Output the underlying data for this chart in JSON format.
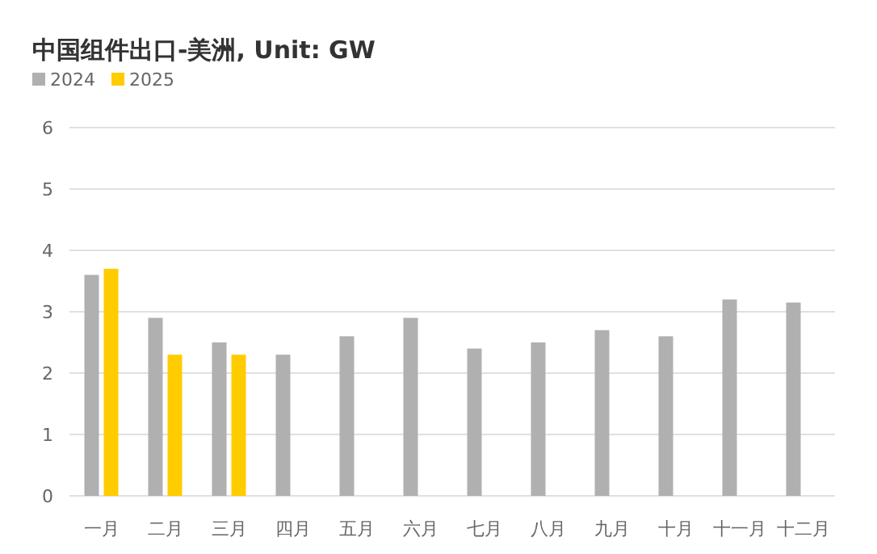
{
  "chart_data": {
    "type": "bar",
    "title": "中国组件出口-美洲, Unit: GW",
    "categories": [
      "一月",
      "二月",
      "三月",
      "四月",
      "五月",
      "六月",
      "七月",
      "八月",
      "九月",
      "十月",
      "十一月",
      "十二月"
    ],
    "series": [
      {
        "name": "2024",
        "color": "#b0b0b0",
        "values": [
          3.6,
          2.9,
          2.5,
          2.3,
          2.6,
          2.9,
          2.4,
          2.5,
          2.7,
          2.6,
          3.2,
          3.15
        ]
      },
      {
        "name": "2025",
        "color": "#ffcc00",
        "values": [
          3.7,
          2.3,
          2.3,
          null,
          null,
          null,
          null,
          null,
          null,
          null,
          null,
          null
        ]
      }
    ],
    "ylim": [
      0,
      6
    ],
    "yticks": [
      0,
      1,
      2,
      3,
      4,
      5,
      6
    ],
    "grid": "y",
    "legend": "top left"
  }
}
